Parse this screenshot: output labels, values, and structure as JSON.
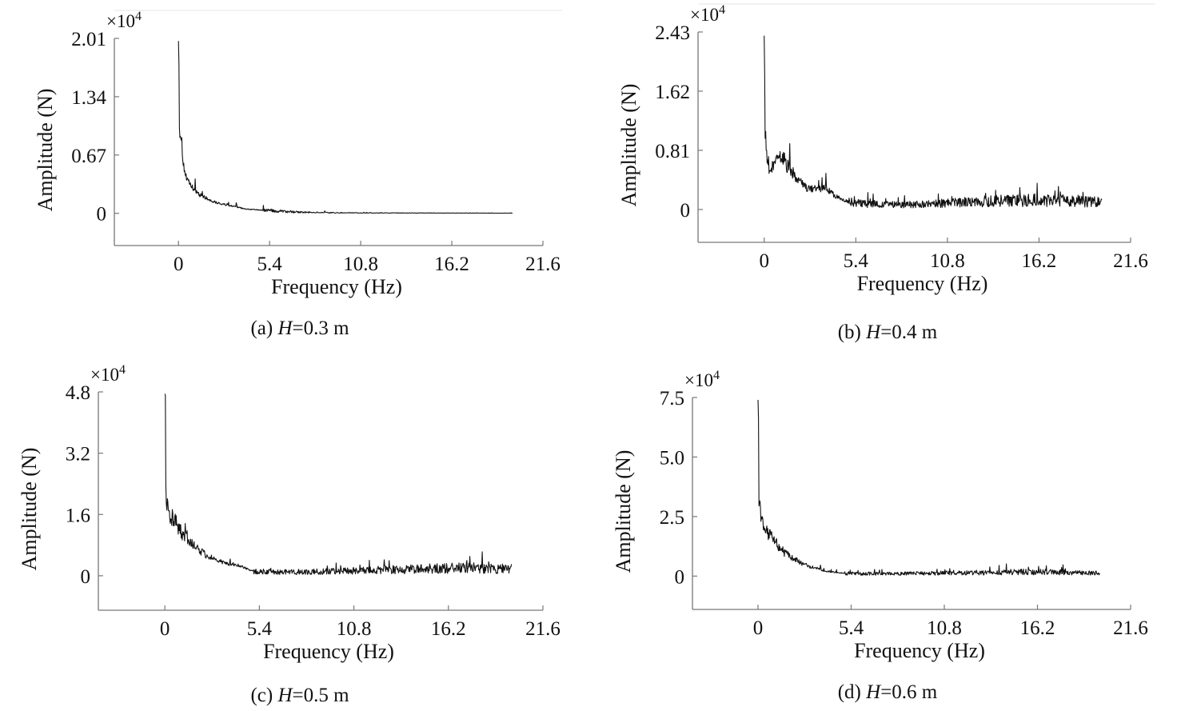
{
  "chart_data": [
    {
      "type": "line",
      "caption_prefix": "(a) ",
      "caption_var": "H",
      "caption_suffix": "=0.3 m",
      "xlabel": "Frequency (Hz)",
      "ylabel": "Amplitude (N)",
      "y_multiplier": "×10",
      "y_multiplier_exp": "4",
      "x_ticks": [
        "0",
        "5.4",
        "10.8",
        "16.2",
        "21.6"
      ],
      "x_tick_values": [
        0,
        5.4,
        10.8,
        16.2,
        21.6
      ],
      "y_ticks": [
        "0",
        "0.67",
        "1.34",
        "2.01"
      ],
      "y_tick_values": [
        0,
        0.67,
        1.34,
        2.01
      ],
      "xlim": [
        -3.8,
        21.6
      ],
      "ylim": [
        -0.37,
        2.01
      ],
      "x_max_data": 19.8,
      "series": [
        {
          "x": [
            0,
            0.05,
            0.15,
            0.3,
            0.5,
            0.8,
            1.2,
            1.6,
            2.0,
            2.5,
            3.0,
            3.5,
            4.0,
            5.0,
            6.0,
            7.0,
            8.0,
            10.0,
            12.0,
            15.0,
            19.8
          ],
          "y": [
            1.98,
            1.0,
            0.9,
            0.55,
            0.38,
            0.3,
            0.22,
            0.18,
            0.14,
            0.11,
            0.09,
            0.07,
            0.05,
            0.035,
            0.025,
            0.015,
            0.01,
            0.006,
            0.004,
            0.003,
            0.002
          ]
        }
      ],
      "noise": 0.22
    },
    {
      "type": "line",
      "caption_prefix": "(b) ",
      "caption_var": "H",
      "caption_suffix": "=0.4 m",
      "xlabel": "Frequency (Hz)",
      "ylabel": "Amplitude (N)",
      "y_multiplier": "×10",
      "y_multiplier_exp": "4",
      "x_ticks": [
        "0",
        "5.4",
        "10.8",
        "16.2",
        "21.6"
      ],
      "x_tick_values": [
        0,
        5.4,
        10.8,
        16.2,
        21.6
      ],
      "y_ticks": [
        "0",
        "0.81",
        "1.62",
        "2.43"
      ],
      "y_tick_values": [
        0,
        0.81,
        1.62,
        2.43
      ],
      "xlim": [
        -3.9,
        21.6
      ],
      "ylim": [
        -0.45,
        2.43
      ],
      "x_max_data": 19.9,
      "series": [
        {
          "x": [
            0,
            0.05,
            0.15,
            0.3,
            0.6,
            1.0,
            1.5,
            2.0,
            2.5,
            3.0,
            3.6,
            4.2,
            5.0,
            6.0,
            8.0,
            10.0,
            12.0,
            14.0,
            16.0,
            18.0,
            19.9
          ],
          "y": [
            2.38,
            1.15,
            0.8,
            0.55,
            0.6,
            0.75,
            0.55,
            0.4,
            0.3,
            0.28,
            0.3,
            0.18,
            0.1,
            0.08,
            0.06,
            0.08,
            0.1,
            0.12,
            0.13,
            0.12,
            0.1
          ]
        }
      ],
      "noise": 0.35
    },
    {
      "type": "line",
      "caption_prefix": "(c) ",
      "caption_var": "H",
      "caption_suffix": "=0.5 m",
      "xlabel": "Frequency (Hz)",
      "ylabel": "Amplitude (N)",
      "y_multiplier": "×10",
      "y_multiplier_exp": "4",
      "x_ticks": [
        "0",
        "5.4",
        "10.8",
        "16.2",
        "21.6"
      ],
      "x_tick_values": [
        0,
        5.4,
        10.8,
        16.2,
        21.6
      ],
      "y_ticks": [
        "0",
        "1.6",
        "3.2",
        "4.8"
      ],
      "y_tick_values": [
        0,
        1.6,
        3.2,
        4.8
      ],
      "xlim": [
        -3.8,
        21.6
      ],
      "ylim": [
        -0.9,
        4.8
      ],
      "x_max_data": 19.8,
      "series": [
        {
          "x": [
            0,
            0.05,
            0.15,
            0.3,
            0.6,
            1.0,
            1.5,
            2.0,
            2.5,
            3.0,
            3.5,
            4.0,
            4.5,
            5.0,
            6.0,
            8.0,
            10.0,
            12.0,
            14.0,
            16.0,
            18.0,
            19.8
          ],
          "y": [
            4.75,
            2.2,
            1.9,
            1.6,
            1.4,
            1.1,
            0.85,
            0.65,
            0.5,
            0.4,
            0.32,
            0.3,
            0.22,
            0.12,
            0.1,
            0.1,
            0.12,
            0.15,
            0.17,
            0.2,
            0.2,
            0.18
          ]
        }
      ],
      "noise": 0.32
    },
    {
      "type": "line",
      "caption_prefix": "(d) ",
      "caption_var": "H",
      "caption_suffix": "=0.6 m",
      "xlabel": "Frequency (Hz)",
      "ylabel": "Amplitude (N)",
      "y_multiplier": "×10",
      "y_multiplier_exp": "4",
      "x_ticks": [
        "0",
        "5.4",
        "10.8",
        "16.2",
        "21.6"
      ],
      "x_tick_values": [
        0,
        5.4,
        10.8,
        16.2,
        21.6
      ],
      "y_ticks": [
        "0",
        "2.5",
        "5.0",
        "7.5"
      ],
      "y_tick_values": [
        0,
        2.5,
        5.0,
        7.5
      ],
      "xlim": [
        -3.8,
        21.6
      ],
      "ylim": [
        -1.4,
        7.5
      ],
      "x_max_data": 19.8,
      "series": [
        {
          "x": [
            0,
            0.05,
            0.15,
            0.3,
            0.6,
            1.0,
            1.5,
            2.0,
            2.5,
            3.0,
            3.5,
            4.0,
            5.0,
            6.0,
            8.0,
            10.0,
            12.0,
            14.0,
            16.0,
            18.0,
            19.8
          ],
          "y": [
            7.4,
            3.0,
            2.6,
            2.2,
            1.8,
            1.4,
            1.0,
            0.75,
            0.55,
            0.4,
            0.3,
            0.2,
            0.12,
            0.1,
            0.1,
            0.12,
            0.14,
            0.16,
            0.18,
            0.15,
            0.12
          ]
        }
      ],
      "noise": 0.35
    }
  ]
}
